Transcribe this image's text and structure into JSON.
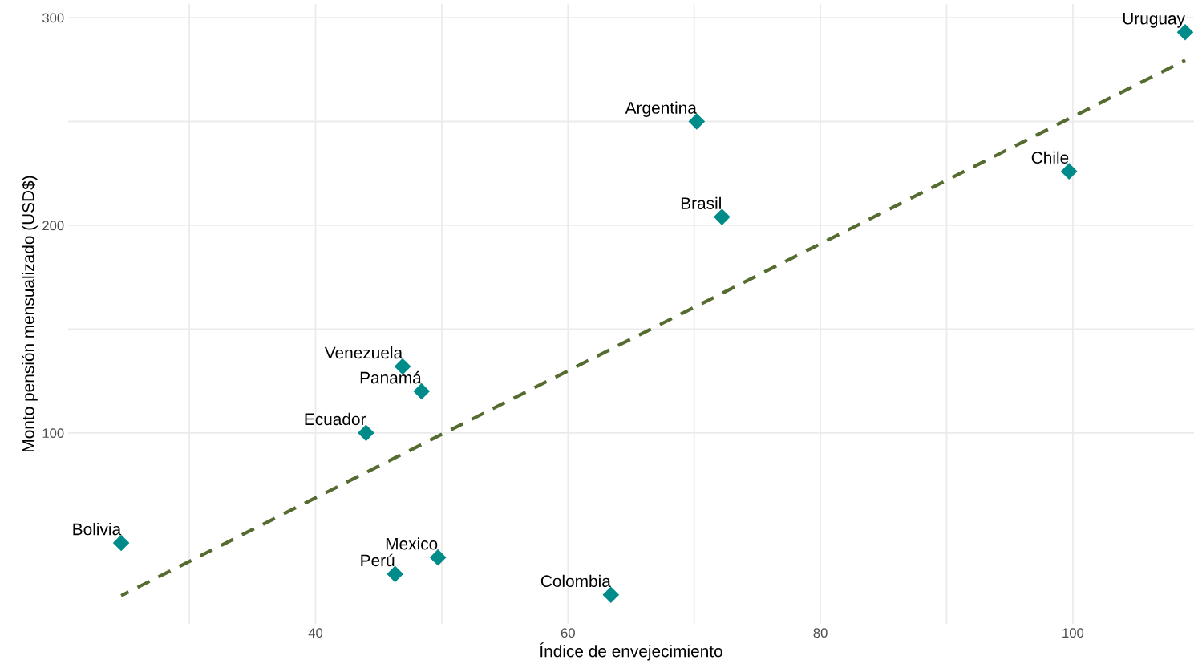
{
  "chart_data": {
    "type": "scatter",
    "xlabel": "Índice de envejecimiento",
    "ylabel": "Monto pensión mensualizado (USD$)",
    "series": [
      {
        "color": "#008b8b",
        "marker": "diamond",
        "x": [
          108.9,
          70.2,
          99.7,
          72.2,
          46.9,
          48.4,
          44.0,
          24.6,
          49.7,
          46.3,
          63.4
        ],
        "values": [
          293,
          250,
          226,
          204,
          132,
          120,
          100,
          47,
          40,
          32,
          22
        ]
      },
      {
        "type": "line",
        "color": "#556b2f",
        "line_style": "dashed",
        "x": [
          24.6,
          108.9
        ],
        "values": [
          21.6,
          279.5
        ]
      }
    ],
    "annotations": [
      {
        "text": "Uruguay",
        "x": 108.9,
        "y": 293
      },
      {
        "text": "Argentina",
        "x": 70.2,
        "y": 250
      },
      {
        "text": "Chile",
        "x": 99.7,
        "y": 226
      },
      {
        "text": "Brasil",
        "x": 72.2,
        "y": 204
      },
      {
        "text": "Venezuela",
        "x": 46.9,
        "y": 132
      },
      {
        "text": "Panamá",
        "x": 48.4,
        "y": 120
      },
      {
        "text": "Ecuador",
        "x": 44.0,
        "y": 100
      },
      {
        "text": "Bolivia",
        "x": 24.6,
        "y": 47
      },
      {
        "text": "Mexico",
        "x": 49.7,
        "y": 40
      },
      {
        "text": "Perú",
        "x": 46.3,
        "y": 32
      },
      {
        "text": "Colombia",
        "x": 63.4,
        "y": 22
      }
    ],
    "xlim": [
      20.4,
      109.6
    ],
    "ylim": [
      8,
      306.6
    ],
    "xticks": [
      {
        "value": 30,
        "label": null
      },
      40,
      {
        "value": 50,
        "label": null
      },
      60,
      {
        "value": 70,
        "label": null
      },
      80,
      {
        "value": 90,
        "label": null
      },
      100
    ],
    "yticks": [
      100,
      {
        "value": 150,
        "label": null
      },
      200,
      {
        "value": 250,
        "label": null
      },
      300
    ],
    "grid": true,
    "legend": false
  }
}
